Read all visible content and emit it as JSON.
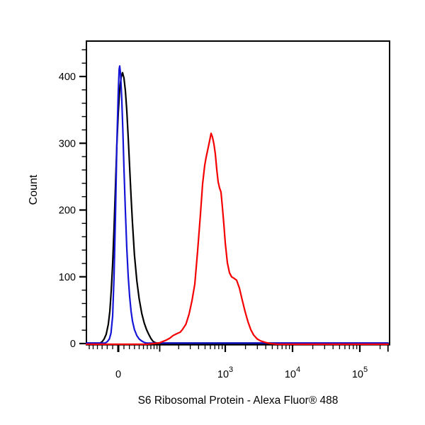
{
  "titles": {
    "x_axis": "S6 Ribosomal Protein - Alexa Fluor® 488",
    "y_axis": "Count"
  },
  "colors": {
    "background": "#ffffff",
    "axis": "#000000",
    "black_curve": "#000000",
    "blue_curve": "#1515d8",
    "red_curve": "#f50000"
  },
  "chart_data": {
    "type": "line",
    "subtype": "flow-cytometry-histogram-overlay",
    "xlabel": "S6 Ribosomal Protein - Alexa Fluor® 488",
    "ylabel": "Count",
    "x_scale": "biexponential",
    "x_domain": [
      -68,
      276900
    ],
    "ylim": [
      0,
      453
    ],
    "grid": "off",
    "legend": "none",
    "y_major_ticks": [
      0,
      100,
      200,
      300,
      400
    ],
    "y_minor_step": 20,
    "y_minor_max": 440,
    "x_major_ticks": [
      {
        "value": 0,
        "label": "0",
        "exponent": ""
      },
      {
        "value": 1000,
        "label": "10",
        "exponent": "3"
      },
      {
        "value": 10000,
        "label": "10",
        "exponent": "4"
      },
      {
        "value": 100000,
        "label": "10",
        "exponent": "5"
      }
    ],
    "x_medium_ticks": [
      100,
      262144
    ],
    "x_minor_ticks": [
      -60,
      -50,
      -40,
      -30,
      -20,
      -10,
      10,
      20,
      30,
      40,
      50,
      60,
      70,
      80,
      90,
      200,
      300,
      400,
      500,
      600,
      700,
      800,
      900,
      2000,
      3000,
      4000,
      5000,
      6000,
      7000,
      8000,
      9000,
      20000,
      30000,
      40000,
      50000,
      60000,
      70000,
      80000,
      90000,
      200000
    ],
    "series": [
      {
        "name": "black",
        "color": "#000000",
        "peak": {
          "x": 7.5,
          "count": 405
        },
        "points": [
          [
            -68,
            0
          ],
          [
            -34,
            0
          ],
          [
            -30,
            2
          ],
          [
            -26,
            6
          ],
          [
            -22,
            13
          ],
          [
            -18,
            28
          ],
          [
            -15,
            48
          ],
          [
            -12.6,
            78
          ],
          [
            -10,
            118
          ],
          [
            -7.5,
            172
          ],
          [
            -5,
            235
          ],
          [
            -2.5,
            298
          ],
          [
            0,
            345
          ],
          [
            2.5,
            380
          ],
          [
            5,
            398
          ],
          [
            7.5,
            405
          ],
          [
            10,
            397
          ],
          [
            12.6,
            378
          ],
          [
            15.2,
            348
          ],
          [
            17.8,
            308
          ],
          [
            20.5,
            264
          ],
          [
            23.2,
            220
          ],
          [
            26,
            180
          ],
          [
            30,
            132
          ],
          [
            35,
            93
          ],
          [
            40,
            66
          ],
          [
            46,
            44
          ],
          [
            52,
            30
          ],
          [
            58,
            20
          ],
          [
            64,
            13
          ],
          [
            70,
            7
          ],
          [
            76,
            3
          ],
          [
            82,
            1
          ],
          [
            90,
            0
          ],
          [
            262144,
            0
          ]
        ]
      },
      {
        "name": "blue",
        "color": "#1515d8",
        "peak": {
          "x": 2.5,
          "count": 415
        },
        "points": [
          [
            -68,
            0
          ],
          [
            -24,
            0
          ],
          [
            -20,
            2
          ],
          [
            -16,
            6
          ],
          [
            -13,
            15
          ],
          [
            -10,
            40
          ],
          [
            -7.5,
            100
          ],
          [
            -5,
            190
          ],
          [
            -2.5,
            300
          ],
          [
            0,
            378
          ],
          [
            1.5,
            410
          ],
          [
            2.5,
            415
          ],
          [
            4,
            403
          ],
          [
            6,
            368
          ],
          [
            8,
            320
          ],
          [
            10,
            262
          ],
          [
            12.6,
            198
          ],
          [
            15.2,
            142
          ],
          [
            17.8,
            100
          ],
          [
            20.5,
            70
          ],
          [
            23.2,
            48
          ],
          [
            26,
            33
          ],
          [
            30,
            20
          ],
          [
            35,
            11
          ],
          [
            40,
            6
          ],
          [
            46,
            3
          ],
          [
            52,
            1
          ],
          [
            58,
            0
          ],
          [
            262144,
            0
          ]
        ]
      },
      {
        "name": "red",
        "color": "#f50000",
        "peak": {
          "x": 615,
          "count": 316
        },
        "points": [
          [
            -68,
            0
          ],
          [
            60,
            0
          ],
          [
            98,
            2
          ],
          [
            112,
            4
          ],
          [
            127,
            6
          ],
          [
            145,
            9
          ],
          [
            164,
            13
          ],
          [
            189,
            16
          ],
          [
            211,
            18
          ],
          [
            228,
            22
          ],
          [
            258,
            30
          ],
          [
            288,
            45
          ],
          [
            318,
            65
          ],
          [
            351,
            90
          ],
          [
            387,
            140
          ],
          [
            427,
            195
          ],
          [
            459,
            240
          ],
          [
            494,
            268
          ],
          [
            519,
            280
          ],
          [
            558,
            295
          ],
          [
            586,
            305
          ],
          [
            615,
            316
          ],
          [
            646,
            310
          ],
          [
            678,
            300
          ],
          [
            712,
            285
          ],
          [
            747,
            262
          ],
          [
            784,
            243
          ],
          [
            823,
            234
          ],
          [
            864,
            228
          ],
          [
            907,
            205
          ],
          [
            952,
            180
          ],
          [
            999,
            152
          ],
          [
            1075,
            122
          ],
          [
            1156,
            107
          ],
          [
            1244,
            101
          ],
          [
            1337,
            99
          ],
          [
            1474,
            96
          ],
          [
            1624,
            84
          ],
          [
            1789,
            66
          ],
          [
            1971,
            49
          ],
          [
            2172,
            34
          ],
          [
            2394,
            22
          ],
          [
            2637,
            14
          ],
          [
            2977,
            8
          ],
          [
            3360,
            5
          ],
          [
            3887,
            3
          ],
          [
            4719,
            1
          ],
          [
            6016,
            0
          ],
          [
            262144,
            0
          ]
        ]
      }
    ]
  }
}
